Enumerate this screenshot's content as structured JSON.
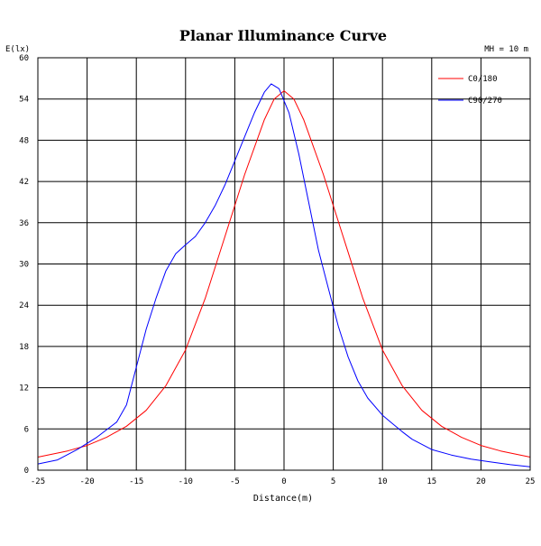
{
  "chart_data": {
    "type": "line",
    "title": "Planar Illuminance Curve",
    "ylabel": "E(lx)",
    "xlabel": "Distance(m)",
    "annotation": "MH = 10 m",
    "xlim": [
      -25,
      25
    ],
    "ylim": [
      0,
      60
    ],
    "xticks": [
      -25,
      -20,
      -15,
      -10,
      -5,
      0,
      5,
      10,
      15,
      20,
      25
    ],
    "yticks": [
      0,
      6,
      12,
      18,
      24,
      30,
      36,
      42,
      48,
      54,
      60
    ],
    "grid": true,
    "legend_position": "top-right",
    "series": [
      {
        "name": "C0/180",
        "color": "#ff0000",
        "points": [
          [
            -25,
            1.9
          ],
          [
            -22,
            2.8
          ],
          [
            -20,
            3.6
          ],
          [
            -18,
            4.8
          ],
          [
            -16,
            6.4
          ],
          [
            -14,
            8.7
          ],
          [
            -12,
            12.3
          ],
          [
            -10,
            17.5
          ],
          [
            -8,
            25.0
          ],
          [
            -6,
            34.0
          ],
          [
            -4,
            43.0
          ],
          [
            -2,
            51.0
          ],
          [
            -1,
            54.0
          ],
          [
            0,
            55.2
          ],
          [
            1,
            54.0
          ],
          [
            2,
            51.0
          ],
          [
            4,
            43.0
          ],
          [
            6,
            34.0
          ],
          [
            8,
            25.0
          ],
          [
            10,
            17.5
          ],
          [
            12,
            12.3
          ],
          [
            14,
            8.7
          ],
          [
            16,
            6.4
          ],
          [
            18,
            4.8
          ],
          [
            20,
            3.6
          ],
          [
            22,
            2.8
          ],
          [
            25,
            1.9
          ]
        ]
      },
      {
        "name": "C90/270",
        "color": "#0000ff",
        "points": [
          [
            -25,
            0.9
          ],
          [
            -23,
            1.5
          ],
          [
            -21,
            3.0
          ],
          [
            -19,
            4.8
          ],
          [
            -17,
            7.0
          ],
          [
            -16,
            9.5
          ],
          [
            -15,
            15.0
          ],
          [
            -14,
            20.5
          ],
          [
            -13,
            25.0
          ],
          [
            -12,
            29.0
          ],
          [
            -11,
            31.5
          ],
          [
            -10,
            32.8
          ],
          [
            -9,
            34.0
          ],
          [
            -8,
            36.0
          ],
          [
            -7,
            38.5
          ],
          [
            -6,
            41.5
          ],
          [
            -5,
            45.0
          ],
          [
            -4,
            48.5
          ],
          [
            -3,
            52.0
          ],
          [
            -2,
            55.0
          ],
          [
            -1.3,
            56.2
          ],
          [
            -0.5,
            55.5
          ],
          [
            0.5,
            52.0
          ],
          [
            1.5,
            46.0
          ],
          [
            2.5,
            39.0
          ],
          [
            3.5,
            32.0
          ],
          [
            4.5,
            26.5
          ],
          [
            5.5,
            21.0
          ],
          [
            6.5,
            16.5
          ],
          [
            7.5,
            13.0
          ],
          [
            8.5,
            10.5
          ],
          [
            10,
            8.0
          ],
          [
            11,
            6.8
          ],
          [
            12,
            5.6
          ],
          [
            13,
            4.5
          ],
          [
            15,
            3.0
          ],
          [
            17,
            2.2
          ],
          [
            19,
            1.6
          ],
          [
            21,
            1.2
          ],
          [
            23,
            0.8
          ],
          [
            25,
            0.5
          ]
        ]
      }
    ]
  }
}
